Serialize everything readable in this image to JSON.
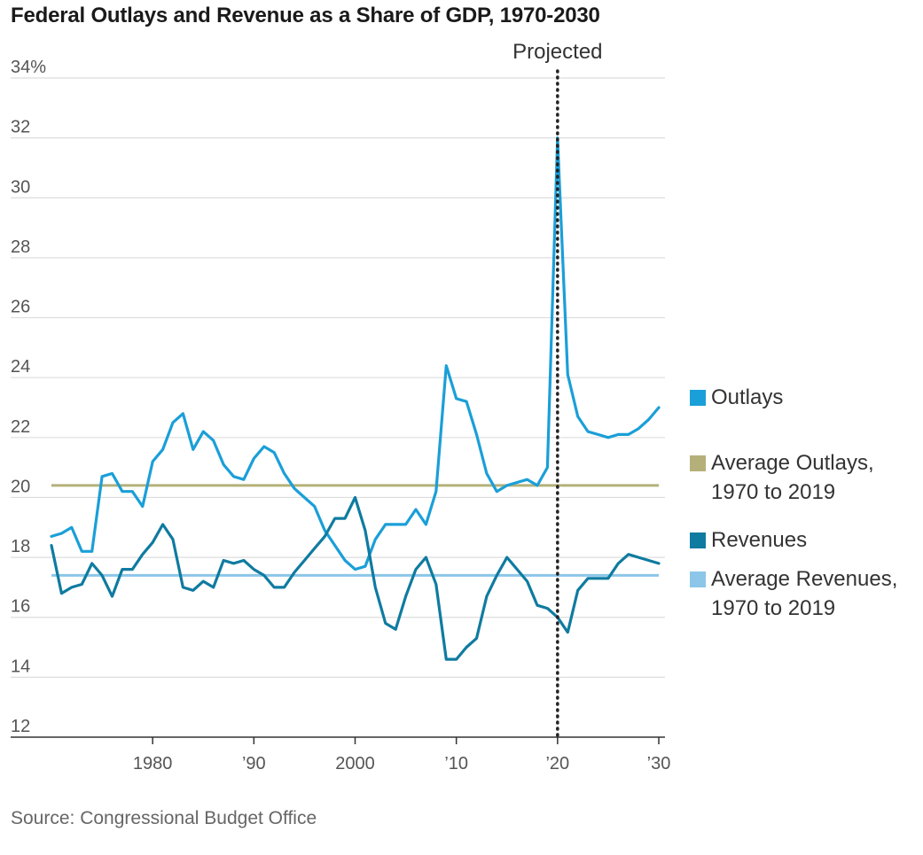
{
  "title": "Federal Outlays and Revenue as a Share of GDP, 1970-2030",
  "source": "Source: Congressional Budget Office",
  "colors": {
    "outlays": "#1a9fd8",
    "revenues": "#0f7ba0",
    "avg_outlays": "#b5b07a",
    "avg_revenues": "#8cc6e8",
    "grid": "#dddddd",
    "axis": "#333333"
  },
  "legend": [
    {
      "key": "outlays",
      "label": "Outlays",
      "color": "#1a9fd8"
    },
    {
      "key": "avg_outlays",
      "label": "Average Outlays, 1970 to 2019",
      "color": "#b5b07a"
    },
    {
      "key": "revenues",
      "label": "Revenues",
      "color": "#0f7ba0"
    },
    {
      "key": "avg_revenues",
      "label": "Average Revenues, 1970 to 2019",
      "color": "#8cc6e8"
    }
  ],
  "chart_data": {
    "type": "line",
    "title": "Federal Outlays and Revenue as a Share of GDP, 1970-2030",
    "xlim": [
      1970,
      2030
    ],
    "ylim": [
      12,
      34
    ],
    "grid": true,
    "x_ticks": [
      {
        "value": 1980,
        "label": "1980"
      },
      {
        "value": 1990,
        "label": "’90"
      },
      {
        "value": 2000,
        "label": "2000"
      },
      {
        "value": 2010,
        "label": "’10"
      },
      {
        "value": 2020,
        "label": "’20"
      },
      {
        "value": 2030,
        "label": "’30"
      }
    ],
    "y_ticks": [
      {
        "value": 12,
        "label": "12"
      },
      {
        "value": 14,
        "label": "14"
      },
      {
        "value": 16,
        "label": "16"
      },
      {
        "value": 18,
        "label": "18"
      },
      {
        "value": 20,
        "label": "20"
      },
      {
        "value": 22,
        "label": "22"
      },
      {
        "value": 24,
        "label": "24"
      },
      {
        "value": 26,
        "label": "26"
      },
      {
        "value": 28,
        "label": "28"
      },
      {
        "value": 30,
        "label": "30"
      },
      {
        "value": 32,
        "label": "32"
      },
      {
        "value": 34,
        "label": "34%"
      }
    ],
    "projection": {
      "x": 2020,
      "label": "Projected"
    },
    "x": [
      1970,
      1971,
      1972,
      1973,
      1974,
      1975,
      1976,
      1977,
      1978,
      1979,
      1980,
      1981,
      1982,
      1983,
      1984,
      1985,
      1986,
      1987,
      1988,
      1989,
      1990,
      1991,
      1992,
      1993,
      1994,
      1995,
      1996,
      1997,
      1998,
      1999,
      2000,
      2001,
      2002,
      2003,
      2004,
      2005,
      2006,
      2007,
      2008,
      2009,
      2010,
      2011,
      2012,
      2013,
      2014,
      2015,
      2016,
      2017,
      2018,
      2019,
      2020,
      2021,
      2022,
      2023,
      2024,
      2025,
      2026,
      2027,
      2028,
      2029,
      2030
    ],
    "series": [
      {
        "name": "Outlays",
        "color": "#1a9fd8",
        "values": [
          18.7,
          18.8,
          19.0,
          18.2,
          18.2,
          20.7,
          20.8,
          20.2,
          20.2,
          19.7,
          21.2,
          21.6,
          22.5,
          22.8,
          21.6,
          22.2,
          21.9,
          21.1,
          20.7,
          20.6,
          21.3,
          21.7,
          21.5,
          20.8,
          20.3,
          20.0,
          19.7,
          18.9,
          18.4,
          17.9,
          17.6,
          17.7,
          18.6,
          19.1,
          19.1,
          19.1,
          19.6,
          19.1,
          20.2,
          24.4,
          23.3,
          23.2,
          22.1,
          20.8,
          20.2,
          20.4,
          20.5,
          20.6,
          20.4,
          21.0,
          32.0,
          24.1,
          22.7,
          22.2,
          22.1,
          22.0,
          22.1,
          22.1,
          22.3,
          22.6,
          23.0
        ]
      },
      {
        "name": "Revenues",
        "color": "#0f7ba0",
        "values": [
          18.4,
          16.8,
          17.0,
          17.1,
          17.8,
          17.4,
          16.7,
          17.6,
          17.6,
          18.1,
          18.5,
          19.1,
          18.6,
          17.0,
          16.9,
          17.2,
          17.0,
          17.9,
          17.8,
          17.9,
          17.6,
          17.4,
          17.0,
          17.0,
          17.5,
          17.9,
          18.3,
          18.7,
          19.3,
          19.3,
          20.0,
          18.9,
          17.0,
          15.8,
          15.6,
          16.7,
          17.6,
          18.0,
          17.1,
          14.6,
          14.6,
          15.0,
          15.3,
          16.7,
          17.4,
          18.0,
          17.6,
          17.2,
          16.4,
          16.3,
          16.0,
          15.5,
          16.9,
          17.3,
          17.3,
          17.3,
          17.8,
          18.1,
          18.0,
          17.9,
          17.8
        ]
      }
    ],
    "reference_lines": [
      {
        "name": "Average Outlays, 1970 to 2019",
        "value": 20.4,
        "color": "#b5b07a"
      },
      {
        "name": "Average Revenues, 1970 to 2019",
        "value": 17.4,
        "color": "#8cc6e8"
      }
    ]
  }
}
